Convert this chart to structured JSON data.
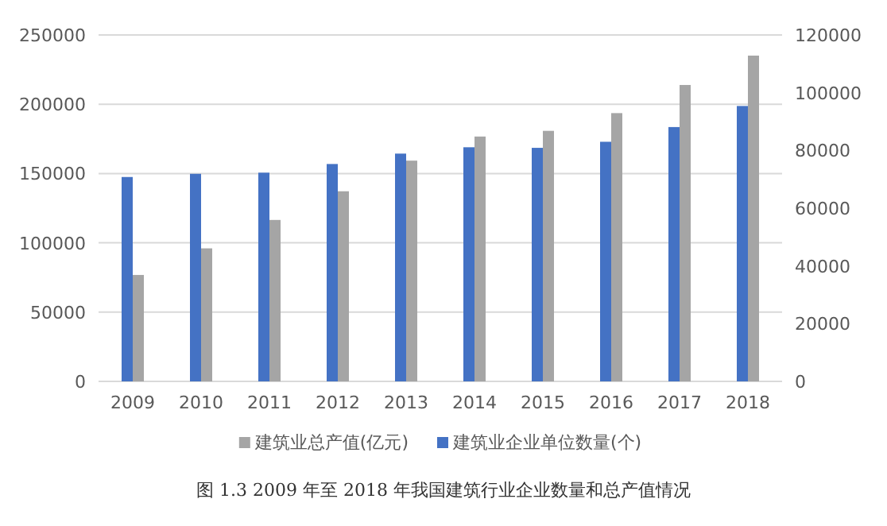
{
  "chart_data": {
    "type": "bar",
    "categories": [
      "2009",
      "2010",
      "2011",
      "2012",
      "2013",
      "2014",
      "2015",
      "2016",
      "2017",
      "2018"
    ],
    "series": [
      {
        "name": "建筑业企业单位数量(个)",
        "color": "#4472c4",
        "axis": "y2",
        "values": [
          70800,
          71900,
          72300,
          75300,
          78900,
          81100,
          80900,
          83000,
          88100,
          95400
        ]
      },
      {
        "name": "建筑业总产值(亿元)",
        "color": "#a5a5a5",
        "values": [
          76800,
          96000,
          116500,
          137200,
          159300,
          176700,
          180800,
          193600,
          213900,
          235100
        ]
      }
    ],
    "ylim": [
      0,
      250000
    ],
    "yticks": [
      0,
      50000,
      100000,
      150000,
      200000,
      250000
    ],
    "y2lim": [
      0,
      120000
    ],
    "y2ticks": [
      0,
      20000,
      40000,
      60000,
      80000,
      100000,
      120000
    ],
    "grid": "y",
    "legend": "bottom",
    "annotations": [
      "图 1.3 2009 年至 2018 年我国建筑行业企业数量和总产值情况"
    ]
  }
}
